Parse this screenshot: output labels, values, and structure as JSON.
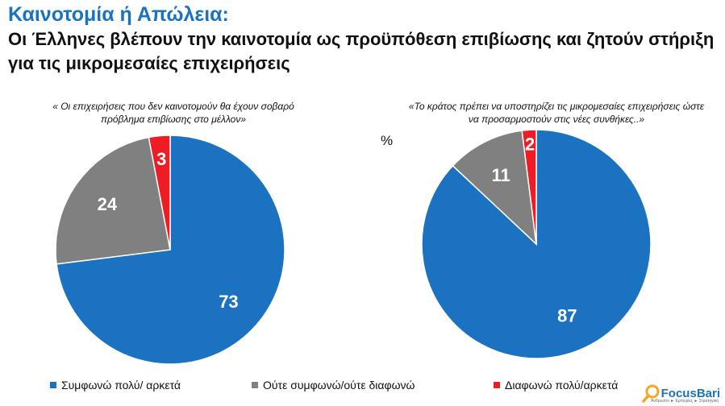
{
  "title": "Καινοτομία ή Απώλεια:",
  "subtitle": "Οι Έλληνες βλέπουν την καινοτομία ως προϋπόθεση επιβίωσης και ζητούν στήριξη για τις μικρομεσαίες επιχειρήσεις",
  "unit": "%",
  "colors": {
    "agree": "#1a72c0",
    "neutral": "#808080",
    "disagree": "#ee1c25"
  },
  "legend": [
    {
      "label": "Συμφωνώ πολύ/ αρκετά",
      "color": "#1a72c0"
    },
    {
      "label": "Ούτε συμφωνώ/ούτε διαφωνώ",
      "color": "#808080"
    },
    {
      "label": "Διαφωνώ πολύ/αρκετά",
      "color": "#ee1c25"
    }
  ],
  "chart_data": [
    {
      "type": "pie",
      "title": "« Οι επιχειρήσεις που δεν καινοτομούν θα έχουν σοβαρό πρόβλημα επιβίωσης στο μέλλον»",
      "categories": [
        "Συμφωνώ πολύ/ αρκετά",
        "Ούτε συμφωνώ/ούτε διαφωνώ",
        "Διαφωνώ πολύ/αρκετά"
      ],
      "values": [
        73,
        24,
        3
      ],
      "colors": [
        "#1a72c0",
        "#808080",
        "#ee1c25"
      ]
    },
    {
      "type": "pie",
      "title": "«Το κράτος πρέπει να υποστηρίζει τις μικρομεσαίες επιχειρήσεις ώστε να προσαρμοστούν στις νέες συνθήκες..»",
      "categories": [
        "Συμφωνώ πολύ/ αρκετά",
        "Ούτε συμφωνώ/ούτε διαφωνώ",
        "Διαφωνώ πολύ/αρκετά"
      ],
      "values": [
        87,
        11,
        2
      ],
      "colors": [
        "#1a72c0",
        "#808080",
        "#ee1c25"
      ]
    }
  ],
  "logo": {
    "name": "FocusBari",
    "tagline": "Άνθρωποι ► Εμπειρίες ► Στρατηγική"
  }
}
